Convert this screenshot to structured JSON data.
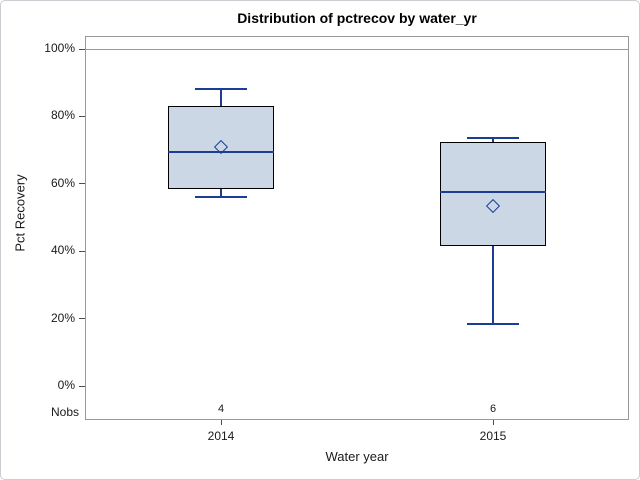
{
  "chart_data": {
    "type": "box",
    "title": "Distribution of pctrecov by water_yr",
    "xlabel": "Water year",
    "ylabel": "Pct Recovery",
    "categories": [
      "2014",
      "2015"
    ],
    "ylim": [
      0,
      100
    ],
    "yticks": [
      0,
      20,
      40,
      60,
      80,
      100
    ],
    "ytick_labels": [
      "0%",
      "20%",
      "40%",
      "60%",
      "80%",
      "100%"
    ],
    "reference_line": 100,
    "grid": "off",
    "legend": "none",
    "nobs_label": "Nobs",
    "series": [
      {
        "category": "2014",
        "nobs": "4",
        "min": 56,
        "q1": 58.5,
        "median": 69.5,
        "mean": 71,
        "q3": 83,
        "max": 88
      },
      {
        "category": "2015",
        "nobs": "6",
        "min": 18.5,
        "q1": 41.5,
        "median": 57.5,
        "mean": 53.5,
        "q3": 72.5,
        "max": 73.5
      }
    ],
    "colors": {
      "box_fill": "#ccd7e6",
      "box_border": "#000000",
      "line_blue": "#1b3e94",
      "frame_gray": "#989898",
      "tick_gray": "#4d4d4d",
      "text": "#1a1a1a"
    }
  }
}
